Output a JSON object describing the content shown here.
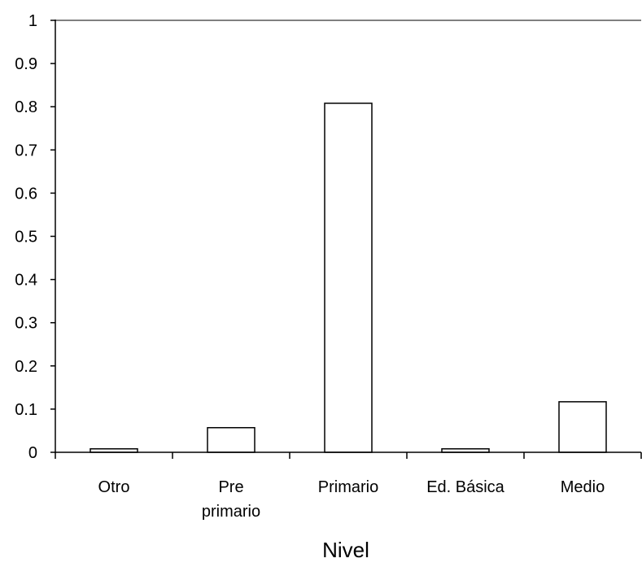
{
  "chart_data": {
    "type": "bar",
    "title": "",
    "xlabel": "Nivel",
    "ylabel": "",
    "categories": [
      {
        "lines": [
          "Otro"
        ]
      },
      {
        "lines": [
          "Pre",
          "primario"
        ]
      },
      {
        "lines": [
          "Primario"
        ]
      },
      {
        "lines": [
          "Ed. Básica"
        ]
      },
      {
        "lines": [
          "Medio"
        ]
      }
    ],
    "values": [
      0.008,
      0.057,
      0.808,
      0.008,
      0.117
    ],
    "ylim": [
      0,
      1
    ],
    "yticks": [
      "0",
      "0.1",
      "0.2",
      "0.3",
      "0.4",
      "0.5",
      "0.6",
      "0.7",
      "0.8",
      "0.9",
      "1"
    ],
    "grid": false,
    "legend": "none",
    "bar_fill": "#ffffff",
    "bar_stroke": "#000000",
    "top_border_color": "#808080"
  }
}
